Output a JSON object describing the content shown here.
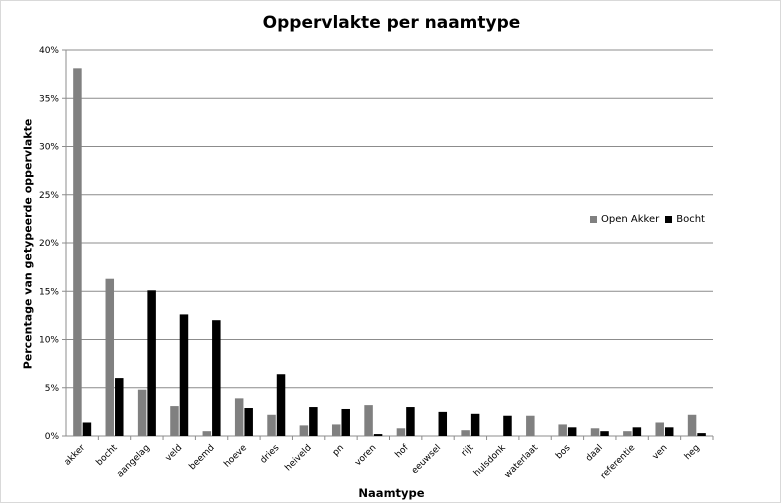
{
  "chart_data": {
    "type": "bar",
    "title": "Oppervlakte per naamtype",
    "xlabel": "Naamtype",
    "ylabel": "Percentage van getypeerde oppervlakte",
    "ylim": [
      0,
      40
    ],
    "yticks": [
      "0%",
      "5%",
      "10%",
      "15%",
      "20%",
      "25%",
      "30%",
      "35%",
      "40%"
    ],
    "grid": "horizontal",
    "legend_position": "right",
    "categories": [
      "akker",
      "bocht",
      "aangelag",
      "veld",
      "beemd",
      "hoeve",
      "dries",
      "heiveld",
      "pn",
      "voren",
      "hof",
      "eeuwsel",
      "rijt",
      "hulsdonk",
      "waterlaat",
      "bos",
      "daal",
      "referentie",
      "ven",
      "heg"
    ],
    "series": [
      {
        "name": "Open Akker",
        "color": "#808080",
        "values": [
          38.1,
          16.3,
          4.8,
          3.1,
          0.5,
          3.9,
          2.2,
          1.1,
          1.2,
          3.2,
          0.8,
          0.0,
          0.6,
          0.0,
          2.1,
          1.2,
          0.8,
          0.5,
          1.4,
          2.2
        ]
      },
      {
        "name": "Bocht",
        "color": "#000000",
        "values": [
          1.4,
          6.0,
          15.1,
          12.6,
          12.0,
          2.9,
          6.4,
          3.0,
          2.8,
          0.2,
          3.0,
          2.5,
          2.3,
          2.1,
          0.0,
          0.9,
          0.5,
          0.9,
          0.9,
          0.3
        ]
      }
    ]
  }
}
